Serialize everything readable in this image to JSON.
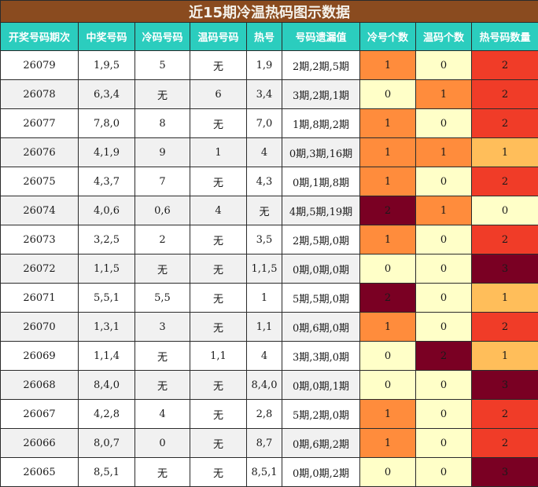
{
  "title": "近15期冷温热码图示数据",
  "headers": [
    "开奖号码期次",
    "中奖号码",
    "冷码号码",
    "温码号码",
    "热号",
    "号码遗漏值",
    "冷号个数",
    "温码个数",
    "热号码数量"
  ],
  "colors": {
    "title_bg": "#8a4b1f",
    "header_bg": "#2bcdbe",
    "cold_0": "#ffffc8",
    "cold_1": "#ff8c3c",
    "cold_2": "#7a0023",
    "warm_0": "#ffffc8",
    "warm_1": "#ff8c3c",
    "warm_2": "#7a0023",
    "hot_0": "#ffffc8",
    "hot_1": "#ffbe5a",
    "hot_2": "#f03c28",
    "hot_3": "#7a0023"
  },
  "rows": [
    {
      "period": "26079",
      "winning": "1,9,5",
      "cold": "5",
      "warm": "无",
      "hot": "1,9",
      "missing": "2期,2期,5期",
      "cold_count": "1",
      "warm_count": "0",
      "hot_count": "2"
    },
    {
      "period": "26078",
      "winning": "6,3,4",
      "cold": "无",
      "warm": "6",
      "hot": "3,4",
      "missing": "3期,2期,1期",
      "cold_count": "0",
      "warm_count": "1",
      "hot_count": "2"
    },
    {
      "period": "26077",
      "winning": "7,8,0",
      "cold": "8",
      "warm": "无",
      "hot": "7,0",
      "missing": "1期,8期,2期",
      "cold_count": "1",
      "warm_count": "0",
      "hot_count": "2"
    },
    {
      "period": "26076",
      "winning": "4,1,9",
      "cold": "9",
      "warm": "1",
      "hot": "4",
      "missing": "0期,3期,16期",
      "cold_count": "1",
      "warm_count": "1",
      "hot_count": "1"
    },
    {
      "period": "26075",
      "winning": "4,3,7",
      "cold": "7",
      "warm": "无",
      "hot": "4,3",
      "missing": "0期,1期,8期",
      "cold_count": "1",
      "warm_count": "0",
      "hot_count": "2"
    },
    {
      "period": "26074",
      "winning": "4,0,6",
      "cold": "0,6",
      "warm": "4",
      "hot": "无",
      "missing": "4期,5期,19期",
      "cold_count": "2",
      "warm_count": "1",
      "hot_count": "0"
    },
    {
      "period": "26073",
      "winning": "3,2,5",
      "cold": "2",
      "warm": "无",
      "hot": "3,5",
      "missing": "2期,5期,0期",
      "cold_count": "1",
      "warm_count": "0",
      "hot_count": "2"
    },
    {
      "period": "26072",
      "winning": "1,1,5",
      "cold": "无",
      "warm": "无",
      "hot": "1,1,5",
      "missing": "0期,0期,0期",
      "cold_count": "0",
      "warm_count": "0",
      "hot_count": "3"
    },
    {
      "period": "26071",
      "winning": "5,5,1",
      "cold": "5,5",
      "warm": "无",
      "hot": "1",
      "missing": "5期,5期,0期",
      "cold_count": "2",
      "warm_count": "0",
      "hot_count": "1"
    },
    {
      "period": "26070",
      "winning": "1,3,1",
      "cold": "3",
      "warm": "无",
      "hot": "1,1",
      "missing": "0期,6期,0期",
      "cold_count": "1",
      "warm_count": "0",
      "hot_count": "2"
    },
    {
      "period": "26069",
      "winning": "1,1,4",
      "cold": "无",
      "warm": "1,1",
      "hot": "4",
      "missing": "3期,3期,0期",
      "cold_count": "0",
      "warm_count": "2",
      "hot_count": "1"
    },
    {
      "period": "26068",
      "winning": "8,4,0",
      "cold": "无",
      "warm": "无",
      "hot": "8,4,0",
      "missing": "0期,0期,1期",
      "cold_count": "0",
      "warm_count": "0",
      "hot_count": "3"
    },
    {
      "period": "26067",
      "winning": "4,2,8",
      "cold": "4",
      "warm": "无",
      "hot": "2,8",
      "missing": "5期,2期,0期",
      "cold_count": "1",
      "warm_count": "0",
      "hot_count": "2"
    },
    {
      "period": "26066",
      "winning": "8,0,7",
      "cold": "0",
      "warm": "无",
      "hot": "8,7",
      "missing": "0期,6期,2期",
      "cold_count": "1",
      "warm_count": "0",
      "hot_count": "2"
    },
    {
      "period": "26065",
      "winning": "8,5,1",
      "cold": "无",
      "warm": "无",
      "hot": "8,5,1",
      "missing": "0期,0期,2期",
      "cold_count": "0",
      "warm_count": "0",
      "hot_count": "3"
    }
  ]
}
